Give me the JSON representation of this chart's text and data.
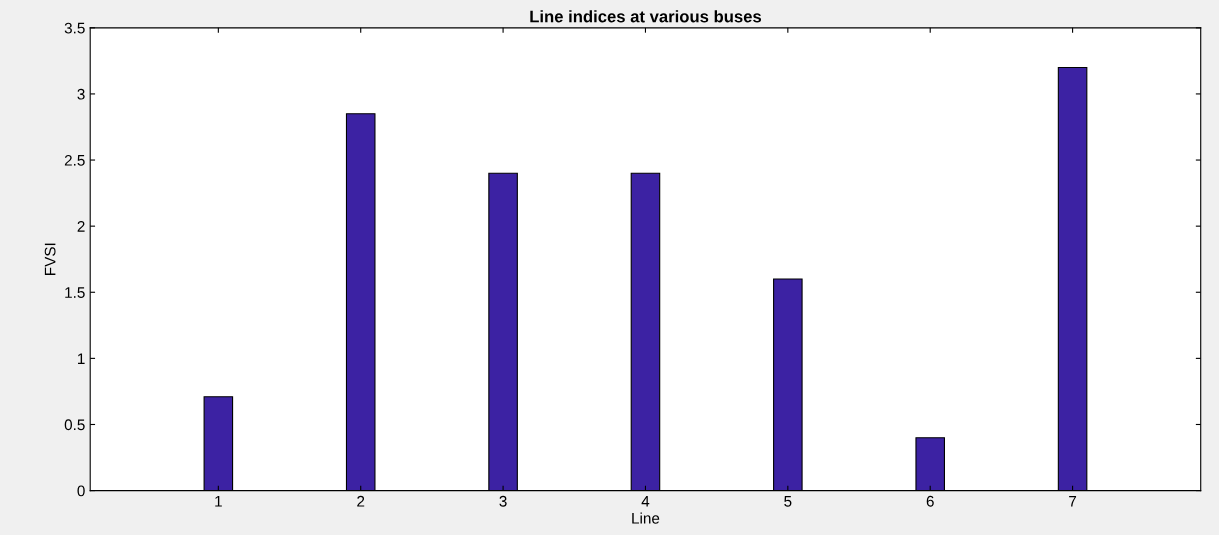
{
  "chart_data": {
    "type": "bar",
    "title": "Line indices at various buses",
    "xlabel": "Line",
    "ylabel": "FVSI",
    "x": [
      1,
      2,
      3,
      4,
      5,
      6,
      7
    ],
    "values": [
      0.71,
      2.85,
      2.4,
      2.4,
      1.6,
      0.4,
      3.2
    ],
    "color": "#3c22a3",
    "xlim": [
      0.1,
      7.9
    ],
    "xticks": [
      1,
      2,
      3,
      4,
      5,
      6,
      7
    ],
    "ylim": [
      0,
      3.5
    ],
    "yticks": [
      0,
      0.5,
      1,
      1.5,
      2,
      2.5,
      3,
      3.5
    ],
    "grid": false,
    "legend": false
  }
}
